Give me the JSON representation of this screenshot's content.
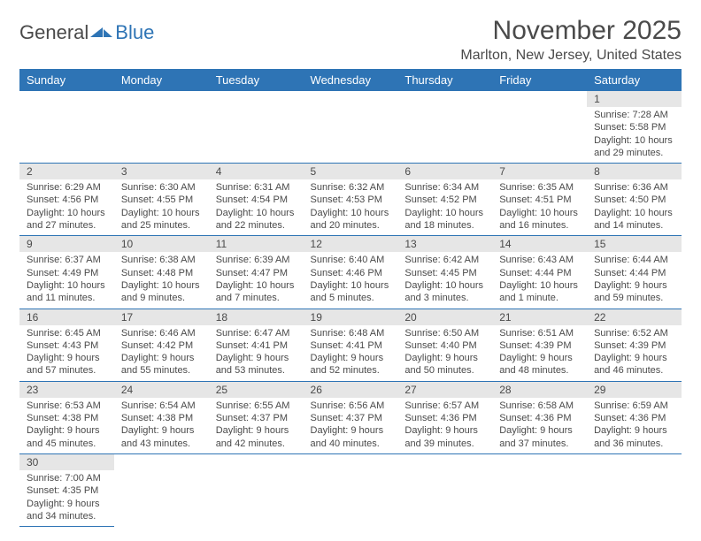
{
  "logo": {
    "text1": "General",
    "text2": "Blue"
  },
  "title": "November 2025",
  "location": "Marlton, New Jersey, United States",
  "colors": {
    "header_bg": "#2e74b5",
    "header_text": "#ffffff",
    "daynum_bg": "#e6e6e6",
    "border": "#2e74b5",
    "text": "#4a4a4a",
    "background": "#ffffff"
  },
  "day_headers": [
    "Sunday",
    "Monday",
    "Tuesday",
    "Wednesday",
    "Thursday",
    "Friday",
    "Saturday"
  ],
  "weeks": [
    [
      null,
      null,
      null,
      null,
      null,
      null,
      {
        "n": "1",
        "sr": "Sunrise: 7:28 AM",
        "ss": "Sunset: 5:58 PM",
        "dl": "Daylight: 10 hours and 29 minutes."
      }
    ],
    [
      {
        "n": "2",
        "sr": "Sunrise: 6:29 AM",
        "ss": "Sunset: 4:56 PM",
        "dl": "Daylight: 10 hours and 27 minutes."
      },
      {
        "n": "3",
        "sr": "Sunrise: 6:30 AM",
        "ss": "Sunset: 4:55 PM",
        "dl": "Daylight: 10 hours and 25 minutes."
      },
      {
        "n": "4",
        "sr": "Sunrise: 6:31 AM",
        "ss": "Sunset: 4:54 PM",
        "dl": "Daylight: 10 hours and 22 minutes."
      },
      {
        "n": "5",
        "sr": "Sunrise: 6:32 AM",
        "ss": "Sunset: 4:53 PM",
        "dl": "Daylight: 10 hours and 20 minutes."
      },
      {
        "n": "6",
        "sr": "Sunrise: 6:34 AM",
        "ss": "Sunset: 4:52 PM",
        "dl": "Daylight: 10 hours and 18 minutes."
      },
      {
        "n": "7",
        "sr": "Sunrise: 6:35 AM",
        "ss": "Sunset: 4:51 PM",
        "dl": "Daylight: 10 hours and 16 minutes."
      },
      {
        "n": "8",
        "sr": "Sunrise: 6:36 AM",
        "ss": "Sunset: 4:50 PM",
        "dl": "Daylight: 10 hours and 14 minutes."
      }
    ],
    [
      {
        "n": "9",
        "sr": "Sunrise: 6:37 AM",
        "ss": "Sunset: 4:49 PM",
        "dl": "Daylight: 10 hours and 11 minutes."
      },
      {
        "n": "10",
        "sr": "Sunrise: 6:38 AM",
        "ss": "Sunset: 4:48 PM",
        "dl": "Daylight: 10 hours and 9 minutes."
      },
      {
        "n": "11",
        "sr": "Sunrise: 6:39 AM",
        "ss": "Sunset: 4:47 PM",
        "dl": "Daylight: 10 hours and 7 minutes."
      },
      {
        "n": "12",
        "sr": "Sunrise: 6:40 AM",
        "ss": "Sunset: 4:46 PM",
        "dl": "Daylight: 10 hours and 5 minutes."
      },
      {
        "n": "13",
        "sr": "Sunrise: 6:42 AM",
        "ss": "Sunset: 4:45 PM",
        "dl": "Daylight: 10 hours and 3 minutes."
      },
      {
        "n": "14",
        "sr": "Sunrise: 6:43 AM",
        "ss": "Sunset: 4:44 PM",
        "dl": "Daylight: 10 hours and 1 minute."
      },
      {
        "n": "15",
        "sr": "Sunrise: 6:44 AM",
        "ss": "Sunset: 4:44 PM",
        "dl": "Daylight: 9 hours and 59 minutes."
      }
    ],
    [
      {
        "n": "16",
        "sr": "Sunrise: 6:45 AM",
        "ss": "Sunset: 4:43 PM",
        "dl": "Daylight: 9 hours and 57 minutes."
      },
      {
        "n": "17",
        "sr": "Sunrise: 6:46 AM",
        "ss": "Sunset: 4:42 PM",
        "dl": "Daylight: 9 hours and 55 minutes."
      },
      {
        "n": "18",
        "sr": "Sunrise: 6:47 AM",
        "ss": "Sunset: 4:41 PM",
        "dl": "Daylight: 9 hours and 53 minutes."
      },
      {
        "n": "19",
        "sr": "Sunrise: 6:48 AM",
        "ss": "Sunset: 4:41 PM",
        "dl": "Daylight: 9 hours and 52 minutes."
      },
      {
        "n": "20",
        "sr": "Sunrise: 6:50 AM",
        "ss": "Sunset: 4:40 PM",
        "dl": "Daylight: 9 hours and 50 minutes."
      },
      {
        "n": "21",
        "sr": "Sunrise: 6:51 AM",
        "ss": "Sunset: 4:39 PM",
        "dl": "Daylight: 9 hours and 48 minutes."
      },
      {
        "n": "22",
        "sr": "Sunrise: 6:52 AM",
        "ss": "Sunset: 4:39 PM",
        "dl": "Daylight: 9 hours and 46 minutes."
      }
    ],
    [
      {
        "n": "23",
        "sr": "Sunrise: 6:53 AM",
        "ss": "Sunset: 4:38 PM",
        "dl": "Daylight: 9 hours and 45 minutes."
      },
      {
        "n": "24",
        "sr": "Sunrise: 6:54 AM",
        "ss": "Sunset: 4:38 PM",
        "dl": "Daylight: 9 hours and 43 minutes."
      },
      {
        "n": "25",
        "sr": "Sunrise: 6:55 AM",
        "ss": "Sunset: 4:37 PM",
        "dl": "Daylight: 9 hours and 42 minutes."
      },
      {
        "n": "26",
        "sr": "Sunrise: 6:56 AM",
        "ss": "Sunset: 4:37 PM",
        "dl": "Daylight: 9 hours and 40 minutes."
      },
      {
        "n": "27",
        "sr": "Sunrise: 6:57 AM",
        "ss": "Sunset: 4:36 PM",
        "dl": "Daylight: 9 hours and 39 minutes."
      },
      {
        "n": "28",
        "sr": "Sunrise: 6:58 AM",
        "ss": "Sunset: 4:36 PM",
        "dl": "Daylight: 9 hours and 37 minutes."
      },
      {
        "n": "29",
        "sr": "Sunrise: 6:59 AM",
        "ss": "Sunset: 4:36 PM",
        "dl": "Daylight: 9 hours and 36 minutes."
      }
    ],
    [
      {
        "n": "30",
        "sr": "Sunrise: 7:00 AM",
        "ss": "Sunset: 4:35 PM",
        "dl": "Daylight: 9 hours and 34 minutes."
      },
      null,
      null,
      null,
      null,
      null,
      null
    ]
  ]
}
